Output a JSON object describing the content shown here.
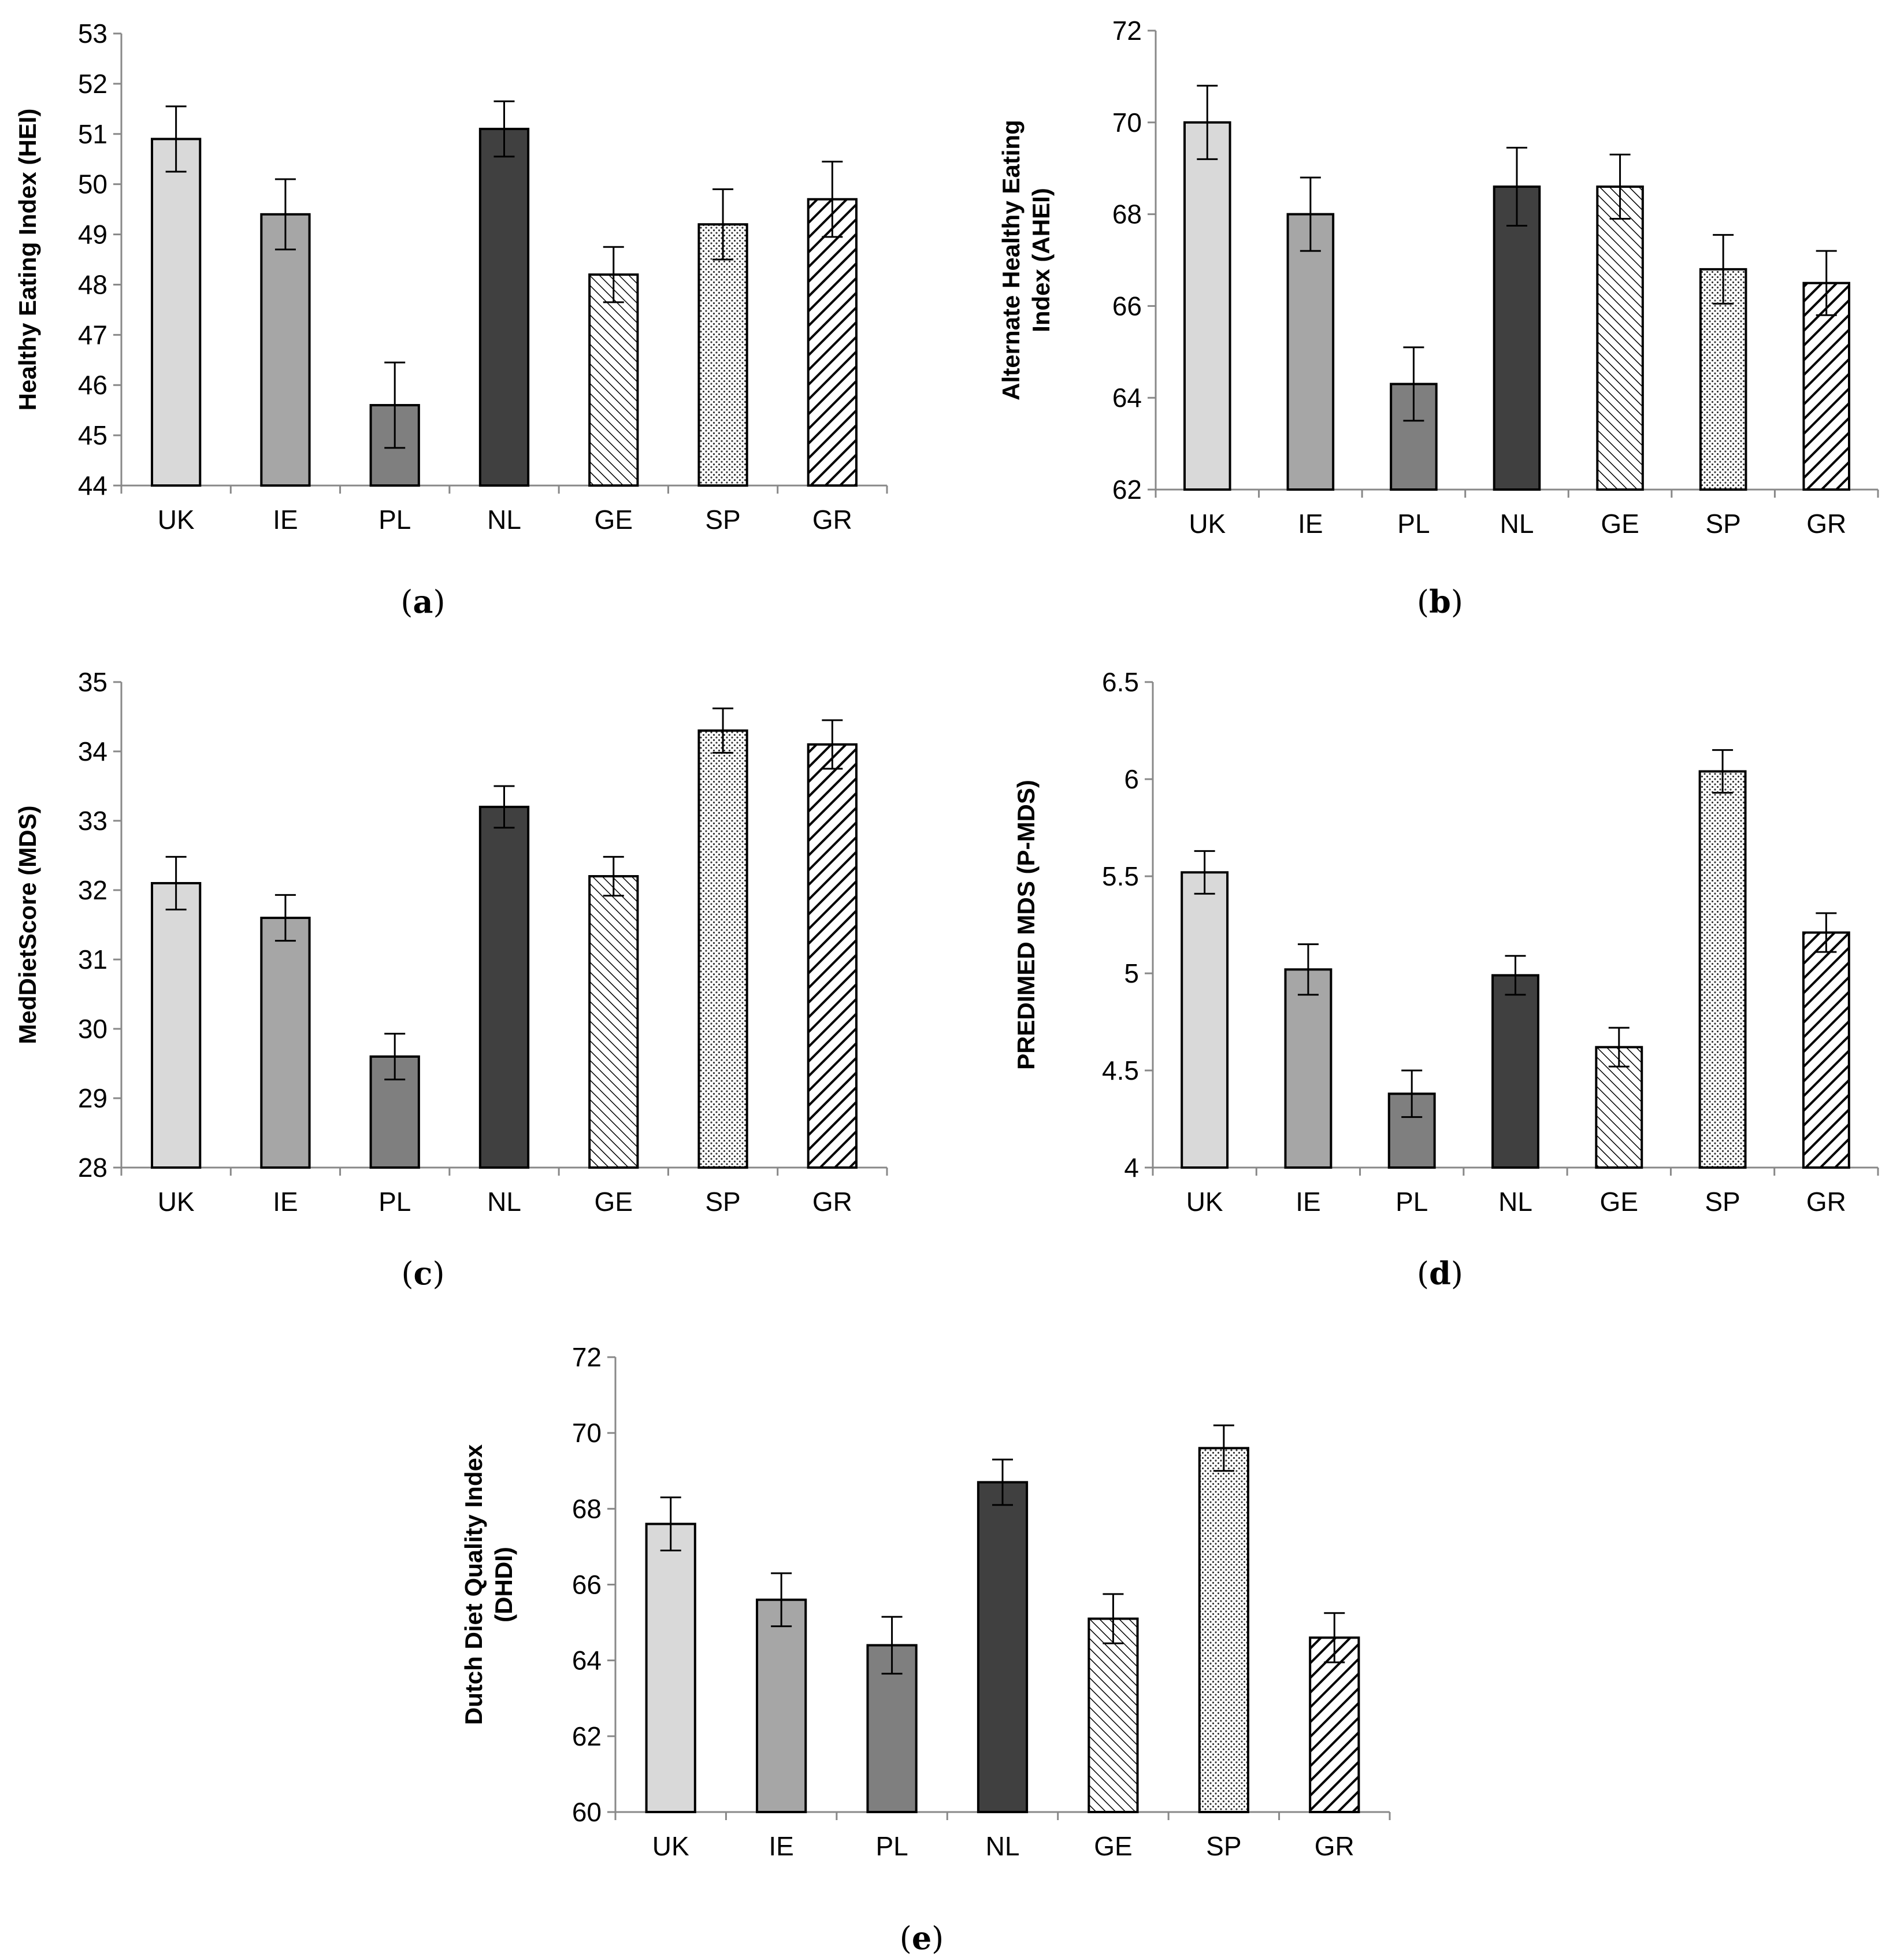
{
  "chart_data": [
    {
      "type": "bar",
      "panel": "a",
      "caption_letter": "a",
      "ylabel_lines": [
        "Healthy Eating Index (HEI)"
      ],
      "categories": [
        "UK",
        "IE",
        "PL",
        "NL",
        "GE",
        "SP",
        "GR"
      ],
      "values": [
        50.9,
        49.4,
        45.6,
        51.1,
        48.2,
        49.2,
        49.7
      ],
      "errors": [
        0.65,
        0.7,
        0.85,
        0.55,
        0.55,
        0.7,
        0.75
      ],
      "ylim": [
        44,
        53
      ],
      "yticks": [
        "44",
        "45",
        "46",
        "47",
        "48",
        "49",
        "50",
        "51",
        "52",
        "53"
      ]
    },
    {
      "type": "bar",
      "panel": "b",
      "caption_letter": "b",
      "ylabel_lines": [
        "Alternate Healthy Eating",
        "Index (AHEI)"
      ],
      "categories": [
        "UK",
        "IE",
        "PL",
        "NL",
        "GE",
        "SP",
        "GR"
      ],
      "values": [
        70.0,
        68.0,
        64.3,
        68.6,
        68.6,
        66.8,
        66.5
      ],
      "errors": [
        0.8,
        0.8,
        0.8,
        0.85,
        0.7,
        0.75,
        0.7
      ],
      "ylim": [
        62,
        72
      ],
      "yticks": [
        "62",
        "64",
        "66",
        "68",
        "70",
        "72"
      ]
    },
    {
      "type": "bar",
      "panel": "c",
      "caption_letter": "c",
      "ylabel_lines": [
        "MedDietScore (MDS)"
      ],
      "categories": [
        "UK",
        "IE",
        "PL",
        "NL",
        "GE",
        "SP",
        "GR"
      ],
      "values": [
        32.1,
        31.6,
        29.6,
        33.2,
        32.2,
        34.3,
        34.1
      ],
      "errors": [
        0.38,
        0.33,
        0.33,
        0.3,
        0.28,
        0.32,
        0.35
      ],
      "ylim": [
        28,
        35
      ],
      "yticks": [
        "28",
        "29",
        "30",
        "31",
        "32",
        "33",
        "34",
        "35"
      ]
    },
    {
      "type": "bar",
      "panel": "d",
      "caption_letter": "d",
      "ylabel_lines": [
        "PREDIMED MDS (P-MDS)"
      ],
      "categories": [
        "UK",
        "IE",
        "PL",
        "NL",
        "GE",
        "SP",
        "GR"
      ],
      "values": [
        5.52,
        5.02,
        4.38,
        4.99,
        4.62,
        6.04,
        5.21
      ],
      "errors": [
        0.11,
        0.13,
        0.12,
        0.1,
        0.1,
        0.11,
        0.1
      ],
      "ylim": [
        4,
        6.5
      ],
      "yticks": [
        "4",
        "4.5",
        "5",
        "5.5",
        "6",
        "6.5"
      ]
    },
    {
      "type": "bar",
      "panel": "e",
      "caption_letter": "e",
      "ylabel_lines": [
        "Dutch Diet Quality Index",
        "(DHDI)"
      ],
      "categories": [
        "UK",
        "IE",
        "PL",
        "NL",
        "GE",
        "SP",
        "GR"
      ],
      "values": [
        67.6,
        65.6,
        64.4,
        68.7,
        65.1,
        69.6,
        64.6
      ],
      "errors": [
        0.7,
        0.7,
        0.75,
        0.6,
        0.65,
        0.6,
        0.65
      ],
      "ylim": [
        60,
        72
      ],
      "yticks": [
        "60",
        "62",
        "64",
        "66",
        "68",
        "70",
        "72"
      ]
    }
  ],
  "styles": {
    "bar_fills": [
      "#d9d9d9",
      "#a6a6a6",
      "#7f7f7f",
      "#404040",
      "hatch-fine",
      "dots",
      "hatch-bold"
    ],
    "axis_color": "#888888",
    "bar_edge_color": "#000000"
  }
}
